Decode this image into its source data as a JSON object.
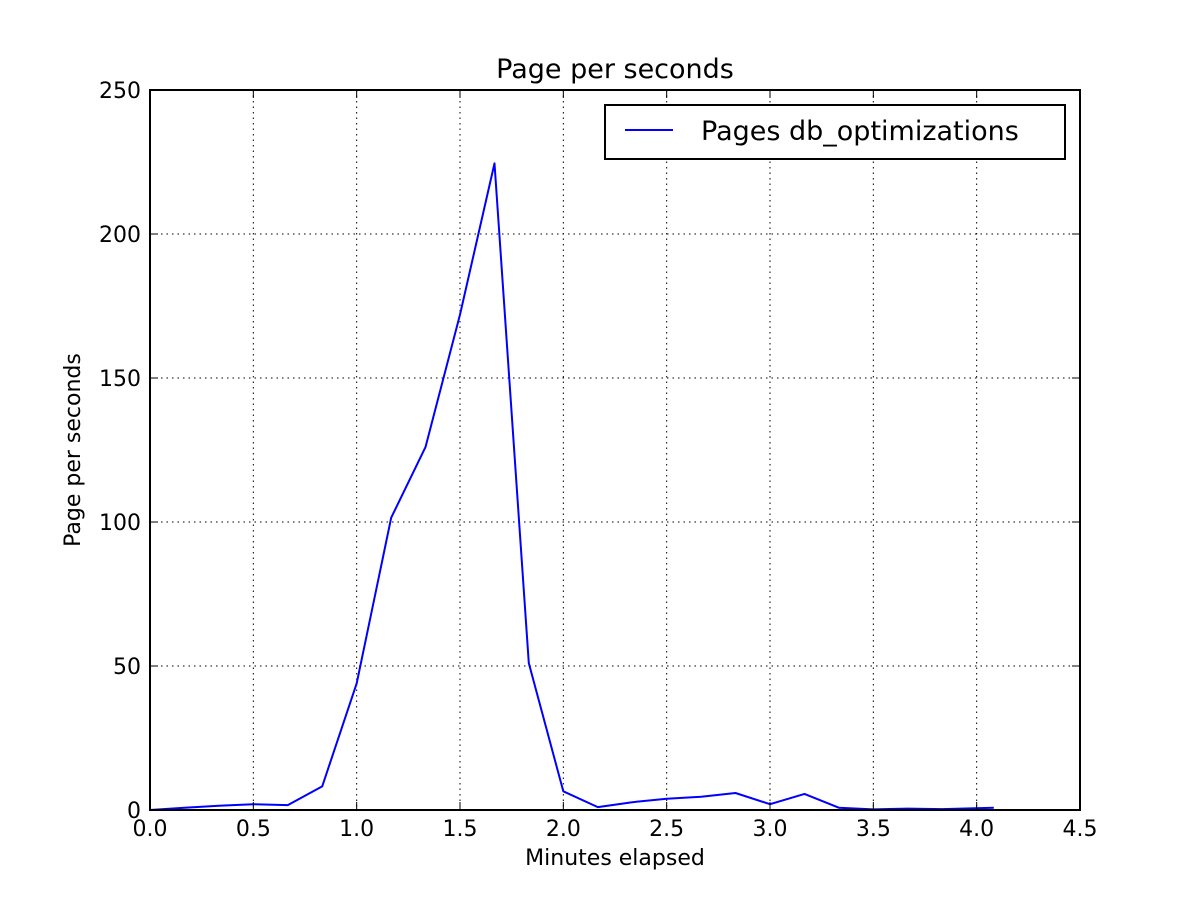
{
  "chart_data": {
    "type": "line",
    "title": "Page per seconds",
    "xlabel": "Minutes elapsed",
    "ylabel": "Page per seconds",
    "xlim": [
      0,
      4.5
    ],
    "ylim": [
      0,
      250
    ],
    "xticks": [
      "0.0",
      "0.5",
      "1.0",
      "1.5",
      "2.0",
      "2.5",
      "3.0",
      "3.5",
      "4.0",
      "4.5"
    ],
    "yticks": [
      "0",
      "50",
      "100",
      "150",
      "200",
      "250"
    ],
    "grid": true,
    "legend_position": "top-right",
    "series": [
      {
        "name": "Pages db_optimizations",
        "color": "#0000ff",
        "x": [
          0.0,
          0.167,
          0.333,
          0.5,
          0.667,
          0.833,
          1.0,
          1.167,
          1.333,
          1.5,
          1.667,
          1.833,
          2.0,
          2.167,
          2.333,
          2.5,
          2.667,
          2.833,
          3.0,
          3.167,
          3.333,
          3.5,
          3.667,
          3.833,
          4.083
        ],
        "y": [
          0.0,
          0.8,
          1.5,
          2.0,
          1.7,
          8.2,
          44.0,
          101.5,
          126.0,
          172.0,
          224.5,
          51.0,
          6.5,
          1.0,
          2.7,
          3.9,
          4.6,
          5.9,
          2.0,
          5.6,
          0.8,
          0.2,
          0.5,
          0.3,
          0.8
        ]
      }
    ]
  }
}
